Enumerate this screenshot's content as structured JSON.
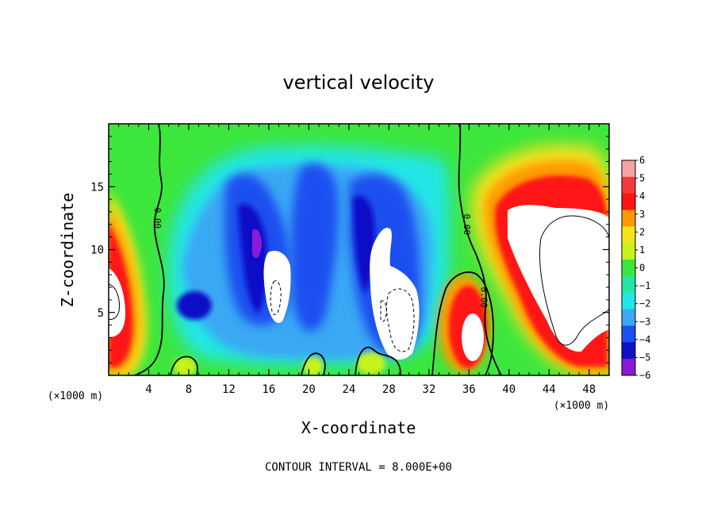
{
  "chart_data": {
    "type": "heatmap",
    "title": "vertical velocity",
    "xlabel": "X-coordinate",
    "ylabel": "Z-coordinate",
    "x_unit": "(×1000 m)",
    "y_unit": "(×1000 m)",
    "xlim": [
      0,
      50
    ],
    "ylim": [
      0,
      20
    ],
    "x_ticks": [
      4,
      8,
      12,
      16,
      20,
      24,
      28,
      32,
      36,
      40,
      44,
      48
    ],
    "y_ticks": [
      5,
      10,
      15
    ],
    "colorbar": {
      "levels": [
        6,
        5,
        4,
        3,
        2,
        1,
        0,
        -1,
        -2,
        -3,
        -4,
        -5,
        -6
      ],
      "labels": [
        "6",
        "5",
        "4",
        "3",
        "2",
        "1",
        "0",
        "−1",
        "−2",
        "−3",
        "−4",
        "−5",
        "−6"
      ],
      "colors": [
        "#f7a3a3",
        "#f43a3a",
        "#ff1414",
        "#ff9a00",
        "#f7e21a",
        "#c8f21a",
        "#3de63d",
        "#24e6a6",
        "#22e6e6",
        "#3aa8f4",
        "#1c50f0",
        "#1010c8",
        "#8a1ad8"
      ]
    },
    "features": [
      {
        "name": "updraft-west",
        "x": 2.0,
        "z": 7.0,
        "value": 6
      },
      {
        "name": "downdraft-center-west",
        "x": 16.0,
        "z": 9.0,
        "value": -5
      },
      {
        "name": "downdraft-center-east",
        "x": 25.0,
        "z": 11.0,
        "value": -5
      },
      {
        "name": "updraft-east",
        "x": 43.0,
        "z": 10.0,
        "value": 6
      },
      {
        "name": "updraft-cell",
        "x": 36.0,
        "z": 4.0,
        "value": 6
      }
    ],
    "contour_labels": [
      {
        "text": "0.00",
        "x": 4.6,
        "z": 12.5
      },
      {
        "text": "0.00",
        "x": 35.5,
        "z": 12.0
      },
      {
        "text": "0.00",
        "x": 37.2,
        "z": 6.2
      }
    ],
    "contour_interval_text": "CONTOUR INTERVAL = 8.000E+00",
    "colors": {
      "background": "#3de63d",
      "saturated": "#ffffff"
    }
  }
}
